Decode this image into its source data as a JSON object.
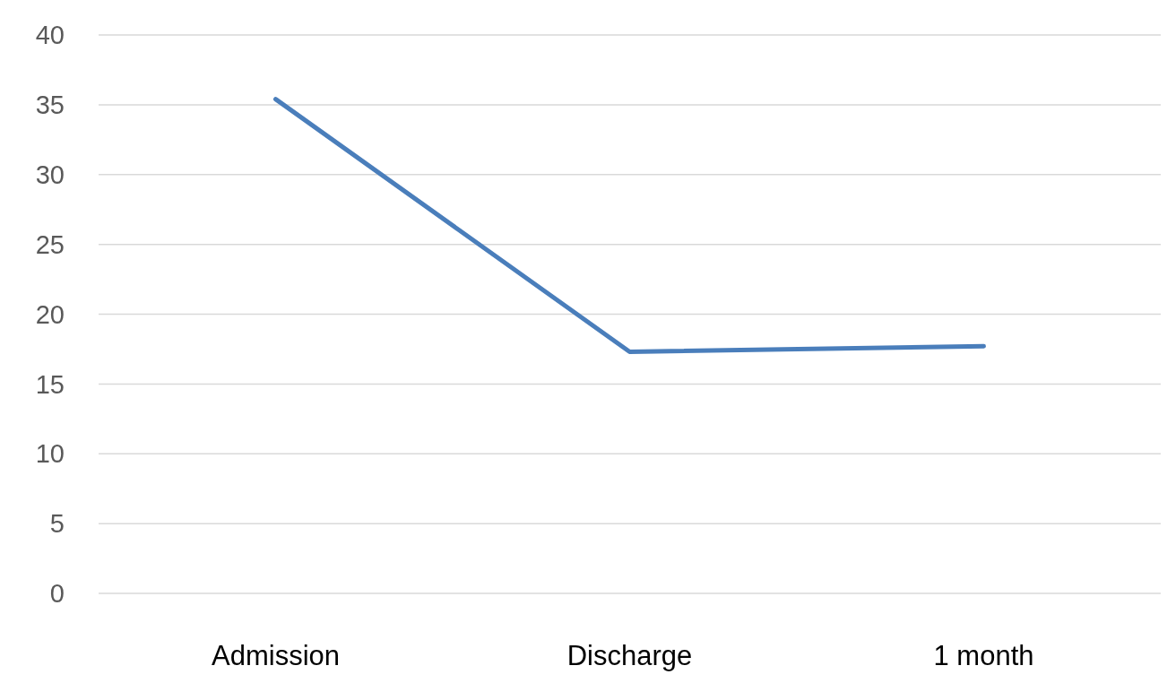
{
  "chart_data": {
    "type": "line",
    "categories": [
      "Admission",
      "Discharge",
      "1 month"
    ],
    "series": [
      {
        "color": "#4a7ebb",
        "values": [
          35.4,
          17.3,
          17.7
        ]
      }
    ],
    "ylim": [
      0,
      40
    ],
    "yticks": [
      0,
      5,
      10,
      15,
      20,
      25,
      30,
      35,
      40
    ],
    "grid": "y",
    "marker": "none",
    "line_style": "solid"
  }
}
